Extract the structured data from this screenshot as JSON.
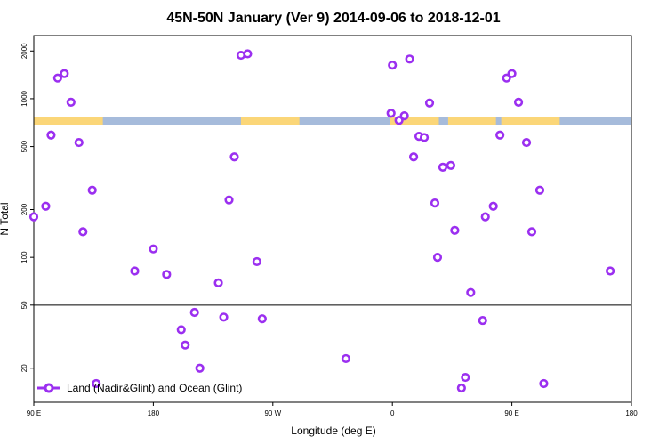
{
  "chart_data": {
    "type": "scatter",
    "title": "45N-50N January (Ver 9)   2014-09-06 to 2018-12-01",
    "xlabel": "Longitude (deg E)",
    "ylabel": "N Total",
    "x_axis": {
      "ticks": [
        {
          "label": "90 E"
        },
        {
          "label": "180"
        },
        {
          "label": "90 W"
        },
        {
          "label": "0"
        },
        {
          "label": "90 E"
        },
        {
          "label": "180"
        }
      ]
    },
    "y_axis": {
      "scale": "log",
      "ticks": [
        {
          "value": 20,
          "label": "20"
        },
        {
          "value": 50,
          "label": "50"
        },
        {
          "value": 100,
          "label": "100"
        },
        {
          "value": 200,
          "label": "200"
        },
        {
          "value": 500,
          "label": "500"
        },
        {
          "value": 1000,
          "label": "1000"
        },
        {
          "value": 2000,
          "label": "2000"
        }
      ]
    },
    "reference_line": {
      "y": 50
    },
    "map_strip": {
      "land_color": "#fbd678",
      "ocean_color": "#a6bbdb"
    },
    "legend": {
      "position": "bottom-left",
      "label": "Land (Nadir&Glint) and Ocean (Glint)"
    },
    "marker_color": "#9b2ff0",
    "series": [
      {
        "name": "Land (Nadir&Glint) and Ocean (Glint)",
        "points": [
          {
            "x": 90,
            "y": 180
          },
          {
            "x": 99,
            "y": 210
          },
          {
            "x": 103,
            "y": 590
          },
          {
            "x": 108,
            "y": 1350
          },
          {
            "x": 113,
            "y": 1440
          },
          {
            "x": 118,
            "y": 950
          },
          {
            "x": 124,
            "y": 530
          },
          {
            "x": 127,
            "y": 145
          },
          {
            "x": 134,
            "y": 265
          },
          {
            "x": 137,
            "y": 16
          },
          {
            "x": 166,
            "y": 82
          },
          {
            "x": 180,
            "y": 113
          },
          {
            "x": 190,
            "y": 78
          },
          {
            "x": 201,
            "y": 35
          },
          {
            "x": 204,
            "y": 28
          },
          {
            "x": 211,
            "y": 45
          },
          {
            "x": 215,
            "y": 20
          },
          {
            "x": 229,
            "y": 69
          },
          {
            "x": 233,
            "y": 42
          },
          {
            "x": 237,
            "y": 230
          },
          {
            "x": 241,
            "y": 430
          },
          {
            "x": 246,
            "y": 1880
          },
          {
            "x": 251,
            "y": 1920
          },
          {
            "x": 258,
            "y": 94
          },
          {
            "x": 262,
            "y": 41
          },
          {
            "x": 325,
            "y": 23
          },
          {
            "x": 359,
            "y": 810
          },
          {
            "x": 360,
            "y": 1630
          },
          {
            "x": 365,
            "y": 730
          },
          {
            "x": 369,
            "y": 780
          },
          {
            "x": 373,
            "y": 1780
          },
          {
            "x": 376,
            "y": 430
          },
          {
            "x": 380,
            "y": 580
          },
          {
            "x": 384,
            "y": 570
          },
          {
            "x": 388,
            "y": 940
          },
          {
            "x": 392,
            "y": 220
          },
          {
            "x": 394,
            "y": 100
          },
          {
            "x": 398,
            "y": 370
          },
          {
            "x": 404,
            "y": 380
          },
          {
            "x": 407,
            "y": 148
          },
          {
            "x": 412,
            "y": 15
          },
          {
            "x": 415,
            "y": 17.5
          },
          {
            "x": 419,
            "y": 60
          },
          {
            "x": 428,
            "y": 40
          },
          {
            "x": 430,
            "y": 180
          },
          {
            "x": 436,
            "y": 210
          },
          {
            "x": 441,
            "y": 590
          },
          {
            "x": 446,
            "y": 1350
          },
          {
            "x": 450,
            "y": 1440
          },
          {
            "x": 455,
            "y": 950
          },
          {
            "x": 461,
            "y": 530
          },
          {
            "x": 465,
            "y": 145
          },
          {
            "x": 471,
            "y": 265
          },
          {
            "x": 474,
            "y": 16
          },
          {
            "x": 524,
            "y": 82
          }
        ]
      }
    ]
  }
}
